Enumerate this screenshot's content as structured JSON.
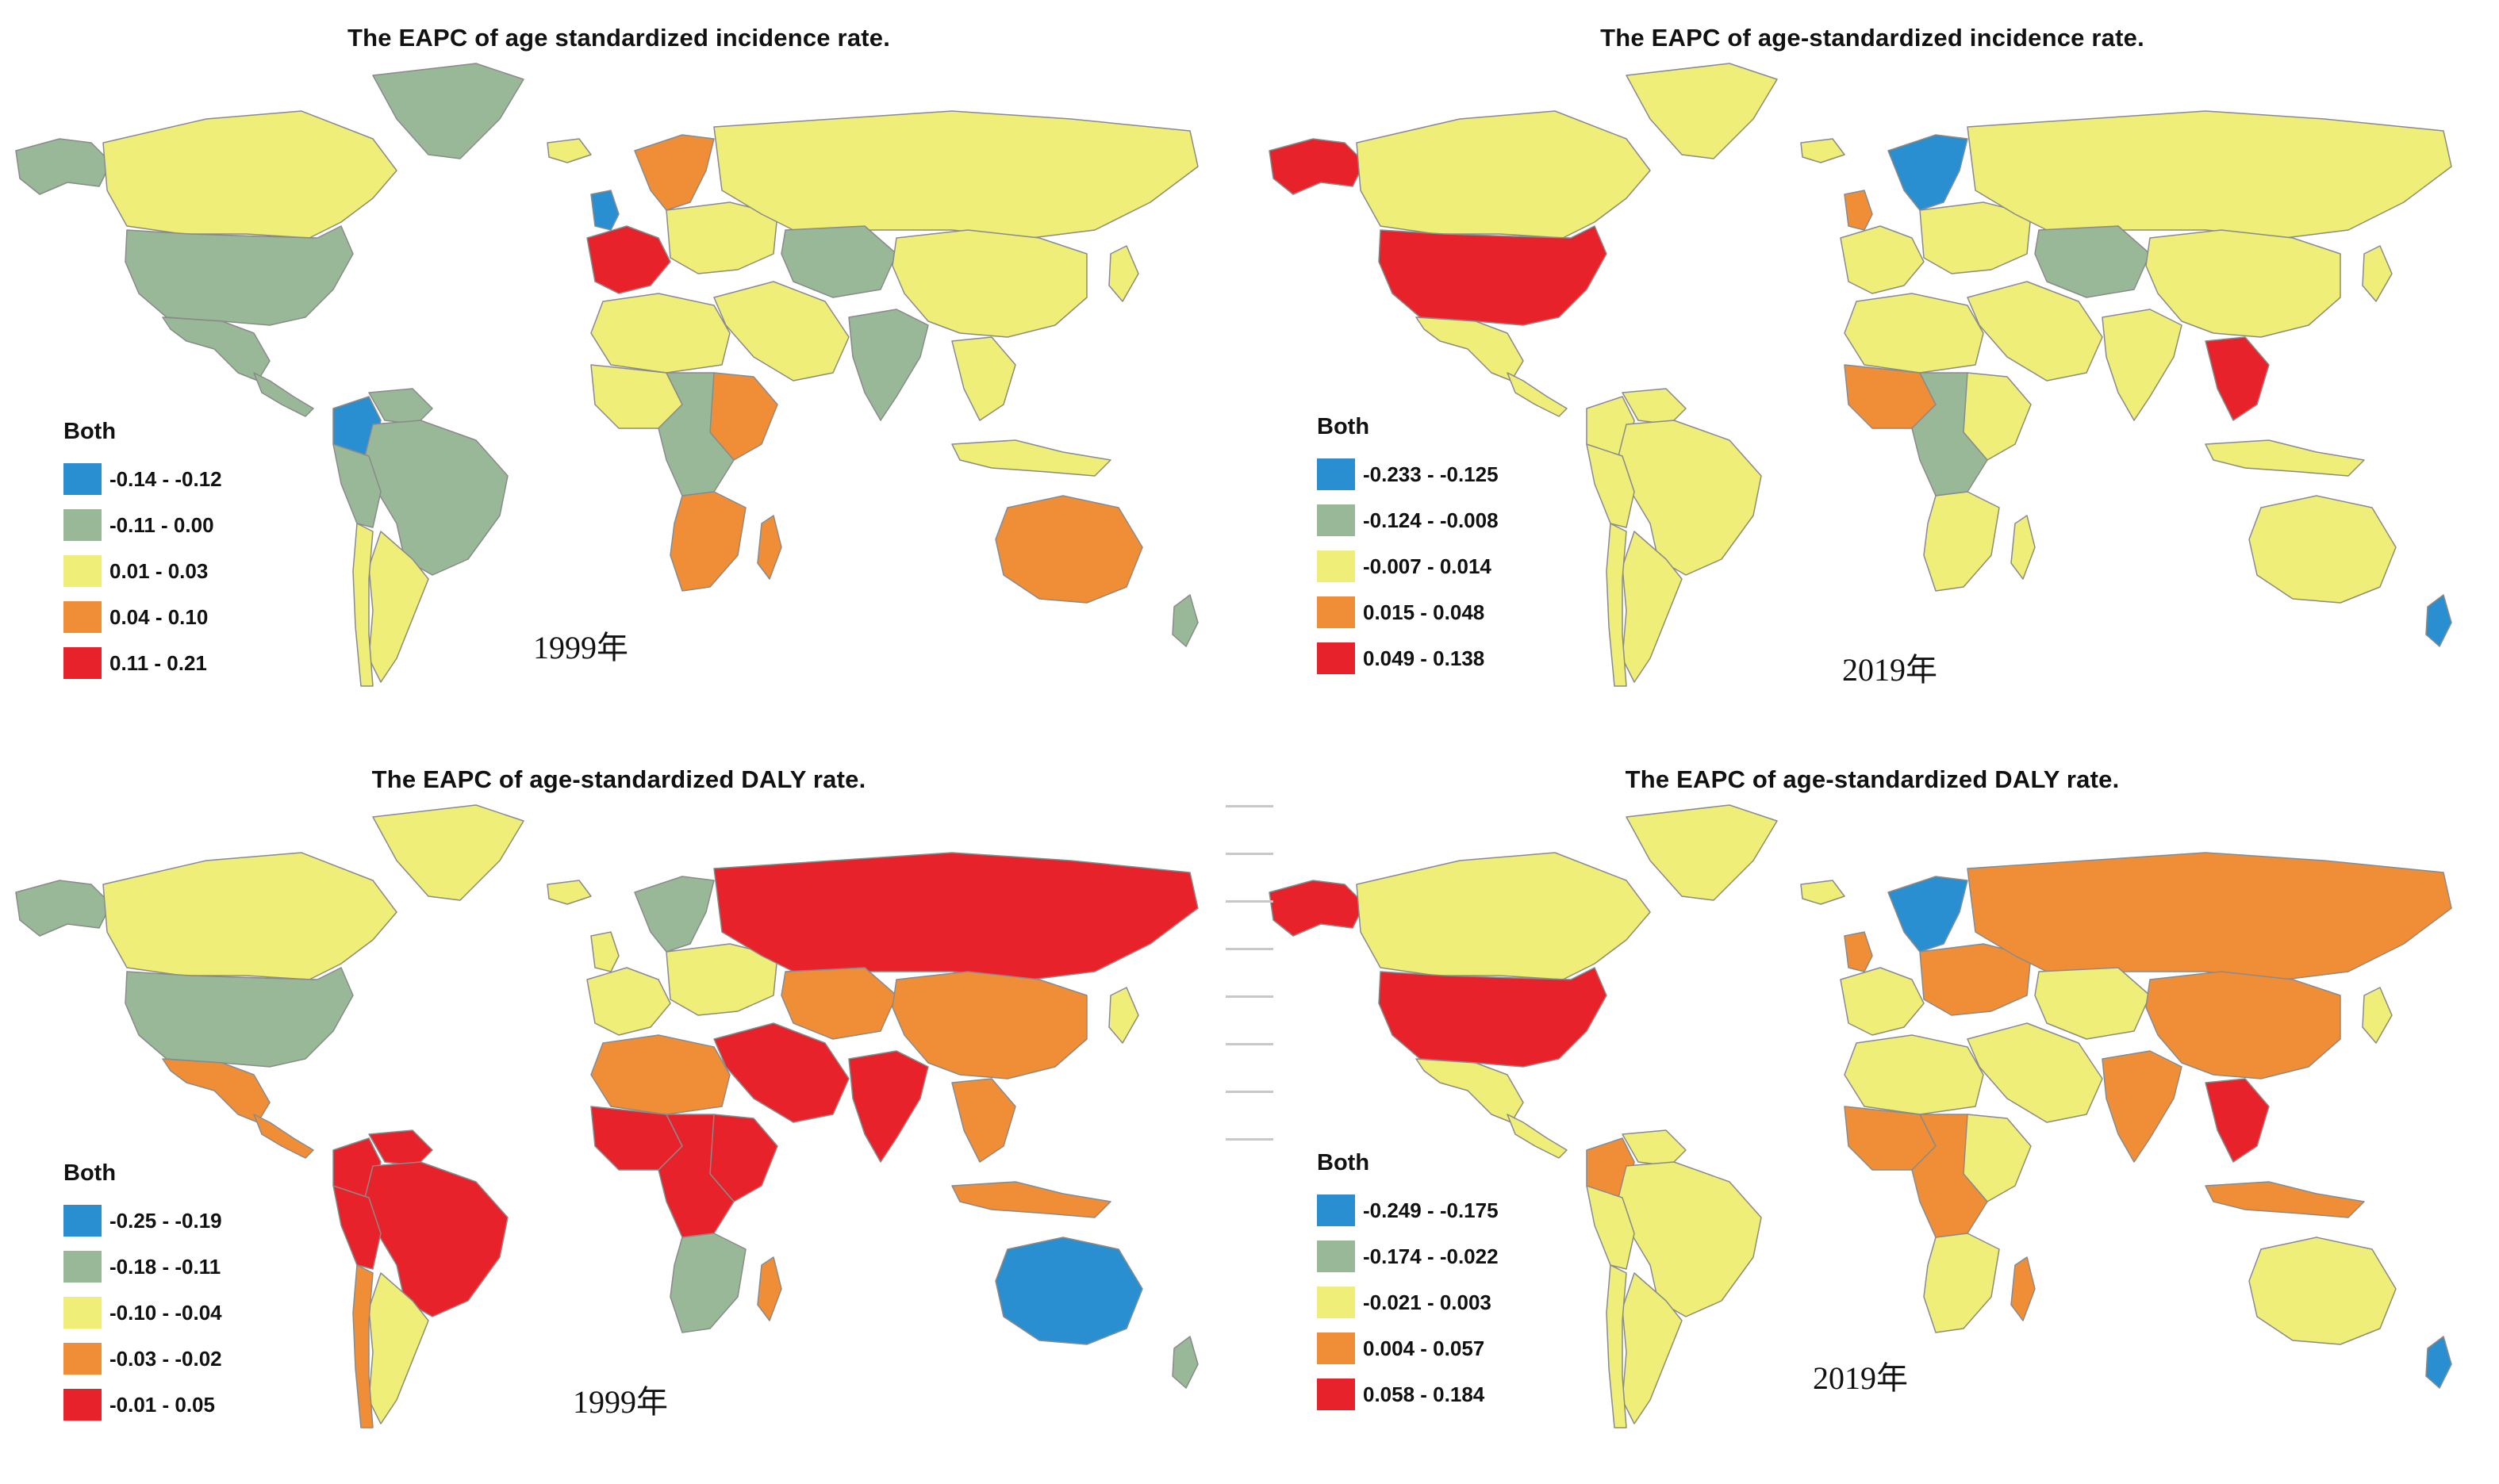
{
  "colors": {
    "blue": "#2a8fd0",
    "green": "#98b898",
    "yellow": "#eeee78",
    "orange": "#f08e38",
    "red": "#e8222a",
    "border": "#8a8a8a"
  },
  "panels": [
    {
      "title": "The EAPC of  age standardized incidence rate.",
      "legend_title": "Both",
      "legend": [
        {
          "label": "-0.14 - -0.12",
          "color": "#2a8fd0"
        },
        {
          "label": "-0.11 - 0.00",
          "color": "#98b898"
        },
        {
          "label": "0.01 - 0.03",
          "color": "#eeee78"
        },
        {
          "label": "0.04 - 0.10",
          "color": "#f08e38"
        },
        {
          "label": "0.11 - 0.21",
          "color": "#e8222a"
        }
      ],
      "year": "1999年",
      "regions": {
        "greenland": "#98b898",
        "alaska": "#98b898",
        "canada": "#eeee78",
        "usa": "#98b898",
        "mexico": "#98b898",
        "central_america": "#98b898",
        "colombia": "#2a8fd0",
        "venezuela": "#98b898",
        "brazil": "#98b898",
        "peru": "#98b898",
        "argentina": "#eeee78",
        "chile": "#eeee78",
        "iceland": "#eeee78",
        "uk": "#2a8fd0",
        "scandinavia": "#f08e38",
        "western_europe": "#e8222a",
        "eastern_europe": "#eeee78",
        "russia": "#eeee78",
        "central_asia": "#98b898",
        "middle_east": "#eeee78",
        "india": "#98b898",
        "china": "#eeee78",
        "se_asia": "#eeee78",
        "indonesia": "#eeee78",
        "japan": "#eeee78",
        "north_africa": "#eeee78",
        "west_africa": "#eeee78",
        "east_africa": "#f08e38",
        "central_africa": "#98b898",
        "southern_africa": "#f08e38",
        "madagascar": "#f08e38",
        "australia": "#f08e38",
        "new_zealand": "#98b898"
      }
    },
    {
      "title": "The EAPC of age-standardized incidence rate.",
      "legend_title": "Both",
      "legend": [
        {
          "label": "-0.233 - -0.125",
          "color": "#2a8fd0"
        },
        {
          "label": "-0.124 - -0.008",
          "color": "#98b898"
        },
        {
          "label": "-0.007 - 0.014",
          "color": "#eeee78"
        },
        {
          "label": "0.015 - 0.048",
          "color": "#f08e38"
        },
        {
          "label": "0.049 - 0.138",
          "color": "#e8222a"
        }
      ],
      "year": "2019年",
      "regions": {
        "greenland": "#eeee78",
        "alaska": "#e8222a",
        "canada": "#eeee78",
        "usa": "#e8222a",
        "mexico": "#eeee78",
        "central_america": "#eeee78",
        "colombia": "#eeee78",
        "venezuela": "#eeee78",
        "brazil": "#eeee78",
        "peru": "#eeee78",
        "argentina": "#eeee78",
        "chile": "#eeee78",
        "iceland": "#eeee78",
        "uk": "#f08e38",
        "scandinavia": "#2a8fd0",
        "western_europe": "#eeee78",
        "eastern_europe": "#eeee78",
        "russia": "#eeee78",
        "central_asia": "#98b898",
        "middle_east": "#eeee78",
        "india": "#eeee78",
        "china": "#eeee78",
        "se_asia": "#e8222a",
        "indonesia": "#eeee78",
        "japan": "#eeee78",
        "north_africa": "#eeee78",
        "west_africa": "#f08e38",
        "east_africa": "#eeee78",
        "central_africa": "#98b898",
        "southern_africa": "#eeee78",
        "madagascar": "#eeee78",
        "australia": "#eeee78",
        "new_zealand": "#2a8fd0"
      }
    },
    {
      "title": "The EAPC of age-standardized DALY rate.",
      "legend_title": "Both",
      "legend": [
        {
          "label": "-0.25 - -0.19",
          "color": "#2a8fd0"
        },
        {
          "label": "-0.18 - -0.11",
          "color": "#98b898"
        },
        {
          "label": "-0.10 - -0.04",
          "color": "#eeee78"
        },
        {
          "label": "-0.03 - -0.02",
          "color": "#f08e38"
        },
        {
          "label": "-0.01 - 0.05",
          "color": "#e8222a"
        }
      ],
      "year": "1999年",
      "regions": {
        "greenland": "#eeee78",
        "alaska": "#98b898",
        "canada": "#eeee78",
        "usa": "#98b898",
        "mexico": "#f08e38",
        "central_america": "#f08e38",
        "colombia": "#e8222a",
        "venezuela": "#e8222a",
        "brazil": "#e8222a",
        "peru": "#e8222a",
        "argentina": "#eeee78",
        "chile": "#f08e38",
        "iceland": "#eeee78",
        "uk": "#eeee78",
        "scandinavia": "#98b898",
        "western_europe": "#eeee78",
        "eastern_europe": "#eeee78",
        "russia": "#e8222a",
        "central_asia": "#f08e38",
        "middle_east": "#e8222a",
        "india": "#e8222a",
        "china": "#f08e38",
        "se_asia": "#f08e38",
        "indonesia": "#f08e38",
        "japan": "#eeee78",
        "north_africa": "#f08e38",
        "west_africa": "#e8222a",
        "east_africa": "#e8222a",
        "central_africa": "#e8222a",
        "southern_africa": "#98b898",
        "madagascar": "#f08e38",
        "australia": "#2a8fd0",
        "new_zealand": "#98b898"
      }
    },
    {
      "title": "The EAPC of age-standardized DALY rate.",
      "legend_title": "Both",
      "legend": [
        {
          "label": "-0.249 - -0.175",
          "color": "#2a8fd0"
        },
        {
          "label": "-0.174 - -0.022",
          "color": "#98b898"
        },
        {
          "label": "-0.021 - 0.003",
          "color": "#eeee78"
        },
        {
          "label": "0.004 - 0.057",
          "color": "#f08e38"
        },
        {
          "label": "0.058 - 0.184",
          "color": "#e8222a"
        }
      ],
      "year": "2019年",
      "regions": {
        "greenland": "#eeee78",
        "alaska": "#e8222a",
        "canada": "#eeee78",
        "usa": "#e8222a",
        "mexico": "#eeee78",
        "central_america": "#eeee78",
        "colombia": "#f08e38",
        "venezuela": "#eeee78",
        "brazil": "#eeee78",
        "peru": "#eeee78",
        "argentina": "#eeee78",
        "chile": "#eeee78",
        "iceland": "#eeee78",
        "uk": "#f08e38",
        "scandinavia": "#2a8fd0",
        "western_europe": "#eeee78",
        "eastern_europe": "#f08e38",
        "russia": "#f08e38",
        "central_asia": "#eeee78",
        "middle_east": "#eeee78",
        "india": "#f08e38",
        "china": "#f08e38",
        "se_asia": "#e8222a",
        "indonesia": "#f08e38",
        "japan": "#eeee78",
        "north_africa": "#eeee78",
        "west_africa": "#f08e38",
        "east_africa": "#eeee78",
        "central_africa": "#f08e38",
        "southern_africa": "#eeee78",
        "madagascar": "#f08e38",
        "australia": "#eeee78",
        "new_zealand": "#2a8fd0"
      }
    }
  ]
}
